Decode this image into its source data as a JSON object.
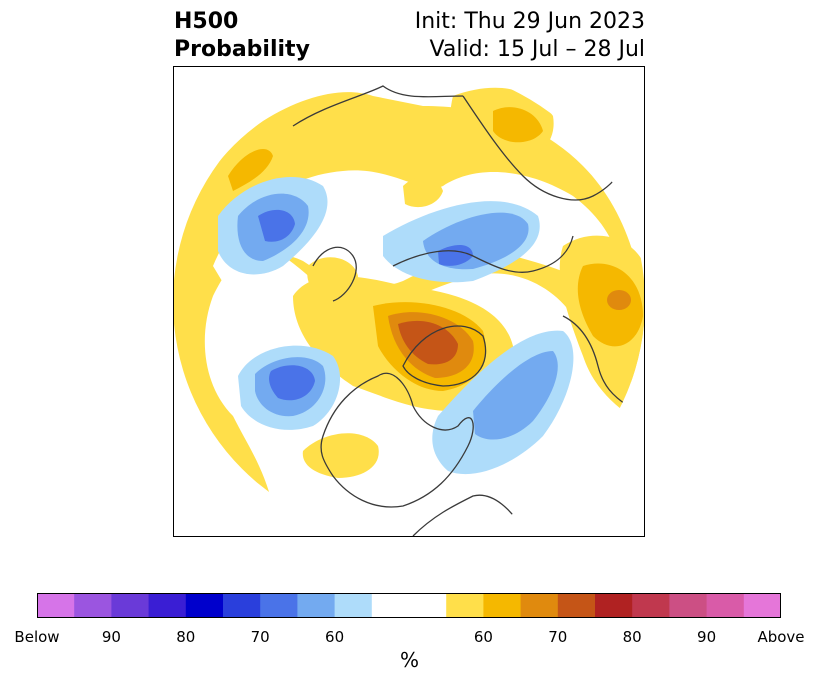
{
  "title": {
    "left_line1": "H500",
    "left_line2": "Probability",
    "right_line1": "Init: Thu 29 Jun 2023",
    "right_line2": "Valid: 15 Jul – 28 Jul"
  },
  "colorbar": {
    "colors": [
      "#d674e8",
      "#9b55e0",
      "#6a3ad8",
      "#3a1ed4",
      "#0000cc",
      "#2a3fdc",
      "#4a73e8",
      "#73aaf0",
      "#aedcfa",
      "#ffffff",
      "#ffffff",
      "#ffdf4a",
      "#f5b800",
      "#e08a0e",
      "#c55517",
      "#b02222",
      "#c0384e",
      "#cc4f84",
      "#d95ba8",
      "#e576d9"
    ],
    "tick_labels": [
      "Below",
      "90",
      "80",
      "70",
      "60",
      "60",
      "70",
      "80",
      "90",
      "Above"
    ],
    "unit": "%"
  },
  "map": {
    "projection": "north-polar-stereographic",
    "colors": {
      "light_blue": "#aedcfa",
      "mid_blue": "#73aaf0",
      "blue": "#4a73e8",
      "yellow": "#ffdf4a",
      "gold": "#f5b800",
      "orange": "#e08a0e",
      "brown": "#c55517",
      "coast": "#3a3a3a"
    }
  }
}
